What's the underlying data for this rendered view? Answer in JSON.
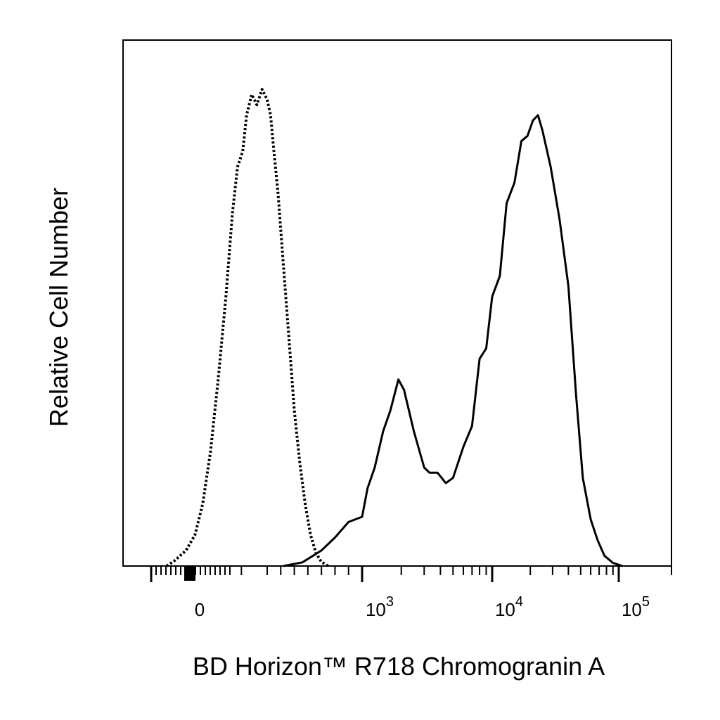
{
  "chart_data": {
    "type": "area",
    "xlabel": "BD Horizon™ R718 Chromogranin A",
    "ylabel": "Relative Cell Number",
    "x_scale": "biexponential",
    "x_ticks": [
      {
        "label": "0",
        "value": 0
      },
      {
        "label": "10",
        "sup": "3",
        "value": 1000
      },
      {
        "label": "10",
        "sup": "4",
        "value": 10000
      },
      {
        "label": "10",
        "sup": "5",
        "value": 100000
      }
    ],
    "xlim": [
      -300,
      200000
    ],
    "ylim": [
      0,
      1
    ],
    "grid": false,
    "legend": "none",
    "series": [
      {
        "style": "dotted",
        "color": "#000000",
        "points": [
          [
            -60,
            0.0
          ],
          [
            -40,
            0.01
          ],
          [
            -10,
            0.03
          ],
          [
            20,
            0.06
          ],
          [
            50,
            0.12
          ],
          [
            80,
            0.22
          ],
          [
            110,
            0.36
          ],
          [
            140,
            0.52
          ],
          [
            165,
            0.68
          ],
          [
            185,
            0.77
          ],
          [
            205,
            0.8
          ],
          [
            220,
            0.87
          ],
          [
            240,
            0.91
          ],
          [
            260,
            0.89
          ],
          [
            280,
            0.92
          ],
          [
            300,
            0.9
          ],
          [
            325,
            0.87
          ],
          [
            350,
            0.8
          ],
          [
            380,
            0.72
          ],
          [
            420,
            0.58
          ],
          [
            460,
            0.44
          ],
          [
            500,
            0.3
          ],
          [
            540,
            0.2
          ],
          [
            580,
            0.12
          ],
          [
            620,
            0.06
          ],
          [
            660,
            0.025
          ],
          [
            700,
            0.008
          ],
          [
            750,
            0.0
          ]
        ]
      },
      {
        "style": "solid",
        "color": "#000000",
        "points": [
          [
            420,
            0.0
          ],
          [
            560,
            0.007
          ],
          [
            700,
            0.03
          ],
          [
            800,
            0.055
          ],
          [
            900,
            0.085
          ],
          [
            1000,
            0.095
          ],
          [
            1100,
            0.15
          ],
          [
            1250,
            0.19
          ],
          [
            1450,
            0.26
          ],
          [
            1650,
            0.3
          ],
          [
            1900,
            0.36
          ],
          [
            2100,
            0.34
          ],
          [
            2500,
            0.26
          ],
          [
            3000,
            0.19
          ],
          [
            3300,
            0.18
          ],
          [
            3800,
            0.18
          ],
          [
            4400,
            0.16
          ],
          [
            5000,
            0.17
          ],
          [
            6000,
            0.23
          ],
          [
            7000,
            0.27
          ],
          [
            8000,
            0.4
          ],
          [
            9000,
            0.42
          ],
          [
            10000,
            0.52
          ],
          [
            11500,
            0.56
          ],
          [
            13000,
            0.7
          ],
          [
            15000,
            0.74
          ],
          [
            17000,
            0.82
          ],
          [
            19000,
            0.83
          ],
          [
            21000,
            0.86
          ],
          [
            23000,
            0.87
          ],
          [
            25000,
            0.84
          ],
          [
            29000,
            0.77
          ],
          [
            34000,
            0.67
          ],
          [
            40000,
            0.54
          ],
          [
            46000,
            0.33
          ],
          [
            52000,
            0.17
          ],
          [
            60000,
            0.09
          ],
          [
            68000,
            0.05
          ],
          [
            77000,
            0.02
          ],
          [
            90000,
            0.006
          ],
          [
            105000,
            0.0
          ]
        ]
      }
    ]
  }
}
